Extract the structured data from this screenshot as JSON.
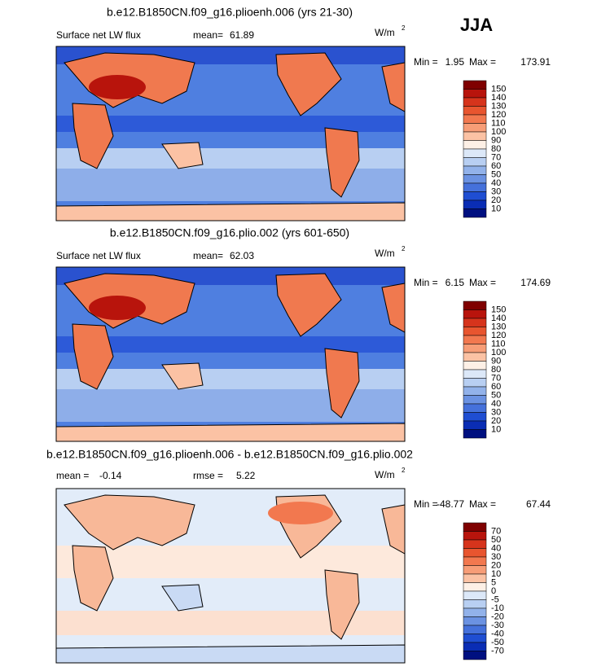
{
  "header": {
    "season": "JJA"
  },
  "panels": [
    {
      "title": "b.e12.B1850CN.f09_g16.plioenh.006 (yrs 21-30)",
      "variable": "Surface net LW flux",
      "mean_label": "mean=",
      "mean": "61.89",
      "units": {
        "base": "W/m",
        "exponent": "2"
      },
      "min_label": "Min =",
      "min": "1.95",
      "max_label": "Max =",
      "max": "173.91",
      "colorbar": [
        "150",
        "140",
        "130",
        "120",
        "110",
        "100",
        "90",
        "80",
        "70",
        "60",
        "50",
        "40",
        "30",
        "20",
        "10"
      ]
    },
    {
      "title": "b.e12.B1850CN.f09_g16.plio.002 (yrs 601-650)",
      "variable": "Surface net LW flux",
      "mean_label": "mean=",
      "mean": "62.03",
      "units": {
        "base": "W/m",
        "exponent": "2"
      },
      "min_label": "Min =",
      "min": "6.15",
      "max_label": "Max =",
      "max": "174.69",
      "colorbar": [
        "150",
        "140",
        "130",
        "120",
        "110",
        "100",
        "90",
        "80",
        "70",
        "60",
        "50",
        "40",
        "30",
        "20",
        "10"
      ]
    },
    {
      "title": "b.e12.B1850CN.f09_g16.plioenh.006 - b.e12.B1850CN.f09_g16.plio.002",
      "mean_label": "mean =",
      "mean": "-0.14",
      "rmse_label": "rmse =",
      "rmse": "5.22",
      "units": {
        "base": "W/m",
        "exponent": "2"
      },
      "min_label": "Min =",
      "min": "-48.77",
      "max_label": "Max =",
      "max": "67.44",
      "colorbar": [
        "70",
        "50",
        "40",
        "30",
        "20",
        "10",
        "5",
        "0",
        "-5",
        "-10",
        "-20",
        "-30",
        "-40",
        "-50",
        "-70"
      ]
    }
  ],
  "colorbar_colors": [
    "#7f0000",
    "#b8140c",
    "#d6341c",
    "#e8552f",
    "#f2784f",
    "#f79d77",
    "#fbc2a4",
    "#fdf0e6",
    "#dce8f8",
    "#b8cff2",
    "#92b2ea",
    "#6b92e2",
    "#4571db",
    "#1f4ed2",
    "#0a2db4",
    "#001080"
  ]
}
